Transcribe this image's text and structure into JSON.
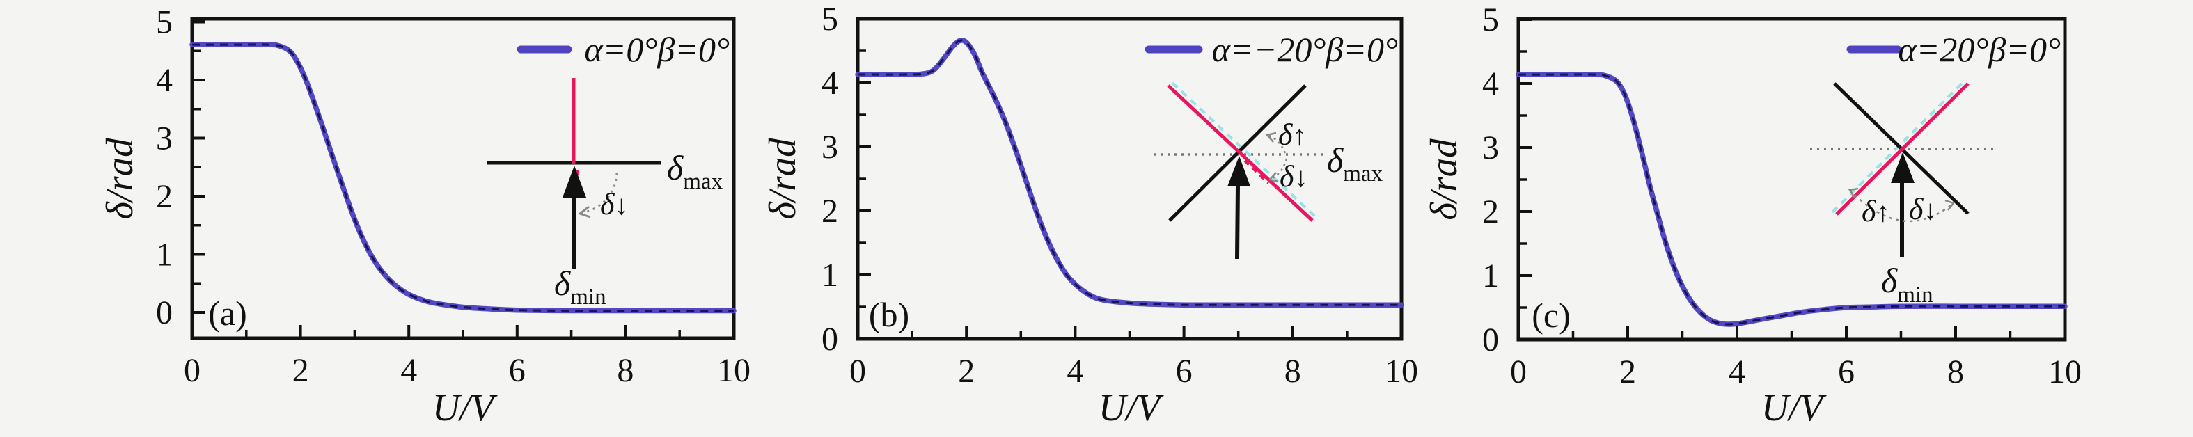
{
  "figure": {
    "background": "#f4f4f2",
    "curve_color": "#5348c4",
    "curve_core_color": "#14104e",
    "red_line_color": "#e8175d",
    "cyan_halo_color": "#8fe0ea",
    "frame_color": "#111111",
    "panels": [
      {
        "label": "(a)",
        "inset": {
          "delta_max": {
            "base": "δ",
            "sub": "max"
          },
          "delta_min": {
            "base": "δ",
            "sub": "min"
          },
          "delta_down": {
            "base": "δ",
            "arrow": "↓"
          }
        }
      },
      {
        "label": "(b)",
        "inset": {
          "delta_max": {
            "base": "δ",
            "sub": "max"
          },
          "delta_up": {
            "base": "δ",
            "arrow": "↑"
          },
          "delta_down": {
            "base": "δ",
            "arrow": "↓"
          }
        }
      },
      {
        "label": "(c)",
        "inset": {
          "delta_min": {
            "base": "δ",
            "sub": "min"
          },
          "delta_up": {
            "base": "δ",
            "arrow": "↑"
          },
          "delta_down": {
            "base": "δ",
            "arrow": "↓"
          }
        }
      }
    ]
  },
  "chart_data": [
    {
      "type": "line",
      "xlabel": "U/V",
      "ylabel": "δ/rad",
      "xlim": [
        0,
        10
      ],
      "ylim": [
        -0.45,
        5.05
      ],
      "x_major_ticks": [
        0,
        2,
        4,
        6,
        8,
        10
      ],
      "x_minor_ticks": [
        1,
        3,
        5,
        7,
        9
      ],
      "y_major_ticks": [
        0,
        1,
        2,
        3,
        4,
        5
      ],
      "y_minor_ticks": [
        0.5,
        1.5,
        2.5,
        3.5,
        4.5
      ],
      "grid": false,
      "legend_position": "upper right",
      "series": [
        {
          "name": "α=0°β=0°",
          "color": "#5348c4",
          "points": [
            [
              0,
              4.61
            ],
            [
              0.8,
              4.61
            ],
            [
              1.4,
              4.61
            ],
            [
              1.6,
              4.59
            ],
            [
              1.8,
              4.5
            ],
            [
              1.95,
              4.3
            ],
            [
              2.1,
              4.0
            ],
            [
              2.25,
              3.62
            ],
            [
              2.4,
              3.22
            ],
            [
              2.6,
              2.66
            ],
            [
              2.8,
              2.12
            ],
            [
              3.0,
              1.6
            ],
            [
              3.2,
              1.17
            ],
            [
              3.4,
              0.84
            ],
            [
              3.6,
              0.6
            ],
            [
              3.8,
              0.43
            ],
            [
              4.0,
              0.31
            ],
            [
              4.3,
              0.2
            ],
            [
              4.6,
              0.14
            ],
            [
              5.0,
              0.09
            ],
            [
              5.5,
              0.06
            ],
            [
              6.0,
              0.04
            ],
            [
              7.0,
              0.03
            ],
            [
              8.0,
              0.03
            ],
            [
              9.0,
              0.03
            ],
            [
              10,
              0.03
            ]
          ]
        }
      ]
    },
    {
      "type": "line",
      "xlabel": "U/V",
      "ylabel": "δ/rad",
      "xlim": [
        0,
        10
      ],
      "ylim": [
        0,
        5
      ],
      "x_major_ticks": [
        0,
        2,
        4,
        6,
        8,
        10
      ],
      "x_minor_ticks": [
        1,
        3,
        5,
        7,
        9
      ],
      "y_major_ticks": [
        0,
        1,
        2,
        3,
        4,
        5
      ],
      "y_minor_ticks": [
        0.5,
        1.5,
        2.5,
        3.5,
        4.5
      ],
      "grid": false,
      "legend_position": "upper right",
      "series": [
        {
          "name": "α=−20°β=0°",
          "color": "#5348c4",
          "points": [
            [
              0,
              4.13
            ],
            [
              0.9,
              4.13
            ],
            [
              1.2,
              4.14
            ],
            [
              1.4,
              4.2
            ],
            [
              1.6,
              4.4
            ],
            [
              1.75,
              4.57
            ],
            [
              1.88,
              4.66
            ],
            [
              2.0,
              4.63
            ],
            [
              2.15,
              4.44
            ],
            [
              2.3,
              4.14
            ],
            [
              2.5,
              3.8
            ],
            [
              2.7,
              3.42
            ],
            [
              2.9,
              2.96
            ],
            [
              3.1,
              2.46
            ],
            [
              3.3,
              1.96
            ],
            [
              3.5,
              1.53
            ],
            [
              3.7,
              1.19
            ],
            [
              3.9,
              0.94
            ],
            [
              4.2,
              0.72
            ],
            [
              4.5,
              0.61
            ],
            [
              5.0,
              0.56
            ],
            [
              5.5,
              0.54
            ],
            [
              6.0,
              0.53
            ],
            [
              7.0,
              0.53
            ],
            [
              8.0,
              0.53
            ],
            [
              9.0,
              0.53
            ],
            [
              10,
              0.53
            ]
          ]
        }
      ]
    },
    {
      "type": "line",
      "xlabel": "U/V",
      "ylabel": "δ/rad",
      "xlim": [
        0,
        10
      ],
      "ylim": [
        0,
        5
      ],
      "x_major_ticks": [
        0,
        2,
        4,
        6,
        8,
        10
      ],
      "x_minor_ticks": [
        1,
        3,
        5,
        7,
        9
      ],
      "y_major_ticks": [
        0,
        1,
        2,
        3,
        4,
        5
      ],
      "y_minor_ticks": [
        0.5,
        1.5,
        2.5,
        3.5,
        4.5
      ],
      "grid": false,
      "legend_position": "upper right",
      "series": [
        {
          "name": "α=20°β=0°",
          "color": "#5348c4",
          "points": [
            [
              0,
              4.14
            ],
            [
              0.8,
              4.14
            ],
            [
              1.4,
              4.14
            ],
            [
              1.6,
              4.12
            ],
            [
              1.8,
              4.03
            ],
            [
              1.95,
              3.82
            ],
            [
              2.1,
              3.44
            ],
            [
              2.25,
              2.95
            ],
            [
              2.4,
              2.42
            ],
            [
              2.55,
              1.95
            ],
            [
              2.7,
              1.5
            ],
            [
              2.9,
              1.02
            ],
            [
              3.1,
              0.68
            ],
            [
              3.3,
              0.45
            ],
            [
              3.5,
              0.31
            ],
            [
              3.7,
              0.25
            ],
            [
              3.9,
              0.24
            ],
            [
              4.1,
              0.26
            ],
            [
              4.4,
              0.31
            ],
            [
              4.8,
              0.37
            ],
            [
              5.2,
              0.43
            ],
            [
              5.6,
              0.47
            ],
            [
              6.0,
              0.5
            ],
            [
              6.5,
              0.51
            ],
            [
              7.0,
              0.52
            ],
            [
              8.0,
              0.52
            ],
            [
              9.0,
              0.52
            ],
            [
              10,
              0.52
            ]
          ]
        }
      ]
    }
  ]
}
